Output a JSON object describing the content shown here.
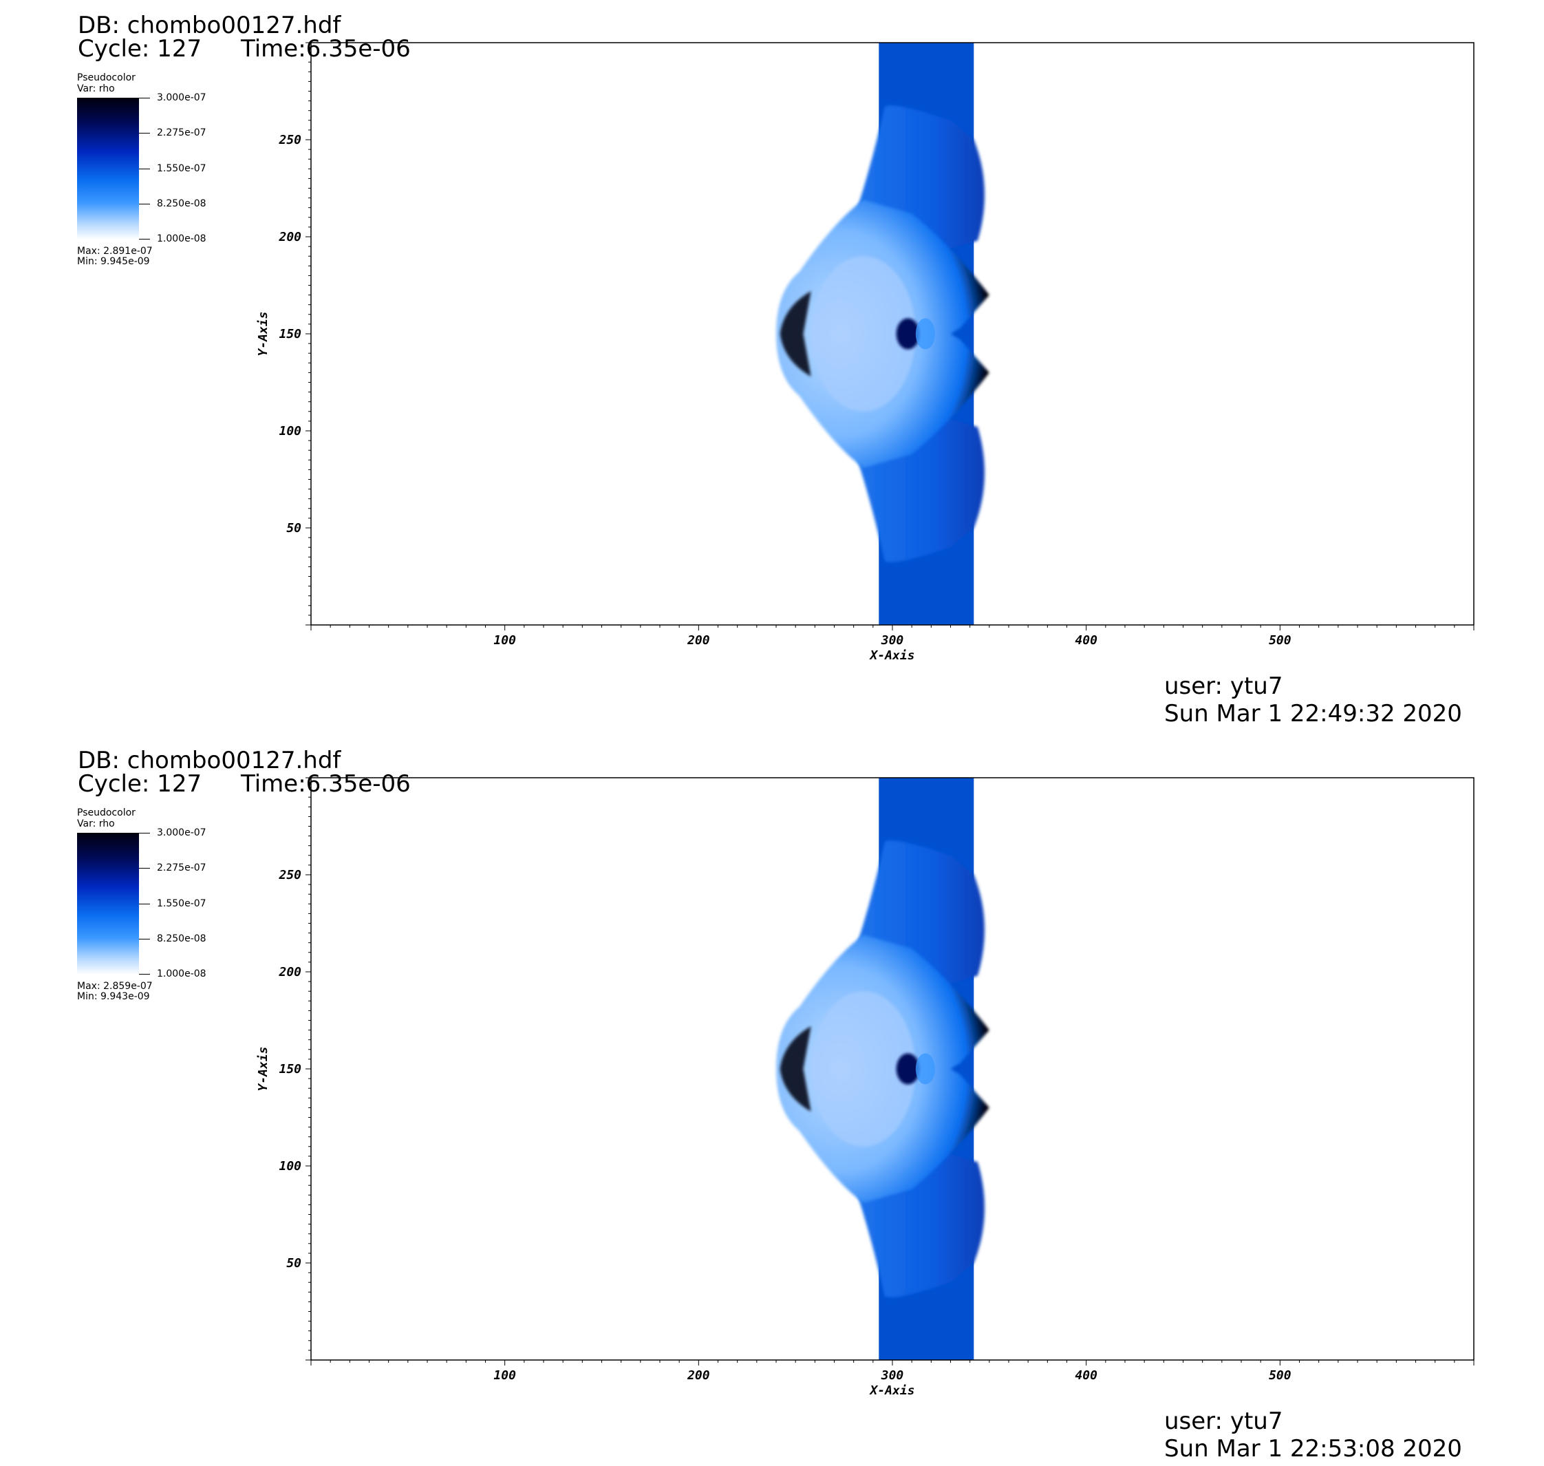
{
  "chart_data": [
    {
      "type": "heatmap",
      "db": "DB: chombo00127.hdf",
      "cycle": "Cycle: 127",
      "time": "Time:6.35e-06",
      "legend": {
        "title": "Pseudocolor",
        "var": "Var: rho",
        "ticks": [
          "3.000e-07",
          "2.275e-07",
          "1.550e-07",
          "8.250e-08",
          "1.000e-08"
        ],
        "max": "Max: 2.891e-07",
        "min": "Min: 9.945e-09"
      },
      "xlabel": "X-Axis",
      "ylabel": "Y-Axis",
      "xlim": [
        0,
        600
      ],
      "ylim": [
        0,
        300
      ],
      "xticks": [
        100,
        200,
        300,
        400,
        500
      ],
      "yticks": [
        50,
        100,
        150,
        200,
        250
      ],
      "user": "user: ytu7",
      "date": "Sun Mar  1 22:49:32 2020",
      "colors": {
        "dark": "#01000e",
        "band": "#0050d0",
        "mid": "#0a6ef0",
        "light": "#bcdcff"
      }
    },
    {
      "type": "heatmap",
      "db": "DB: chombo00127.hdf",
      "cycle": "Cycle: 127",
      "time": "Time:6.35e-06",
      "legend": {
        "title": "Pseudocolor",
        "var": "Var: rho",
        "ticks": [
          "3.000e-07",
          "2.275e-07",
          "1.550e-07",
          "8.250e-08",
          "1.000e-08"
        ],
        "max": "Max: 2.859e-07",
        "min": "Min: 9.943e-09"
      },
      "xlabel": "X-Axis",
      "ylabel": "Y-Axis",
      "xlim": [
        0,
        600
      ],
      "ylim": [
        0,
        300
      ],
      "xticks": [
        100,
        200,
        300,
        400,
        500
      ],
      "yticks": [
        50,
        100,
        150,
        200,
        250
      ],
      "user": "user: ytu7",
      "date": "Sun Mar  1 22:53:08 2020",
      "colors": {
        "dark": "#01000e",
        "band": "#0050d0",
        "mid": "#0a6ef0",
        "light": "#bcdcff"
      }
    }
  ]
}
